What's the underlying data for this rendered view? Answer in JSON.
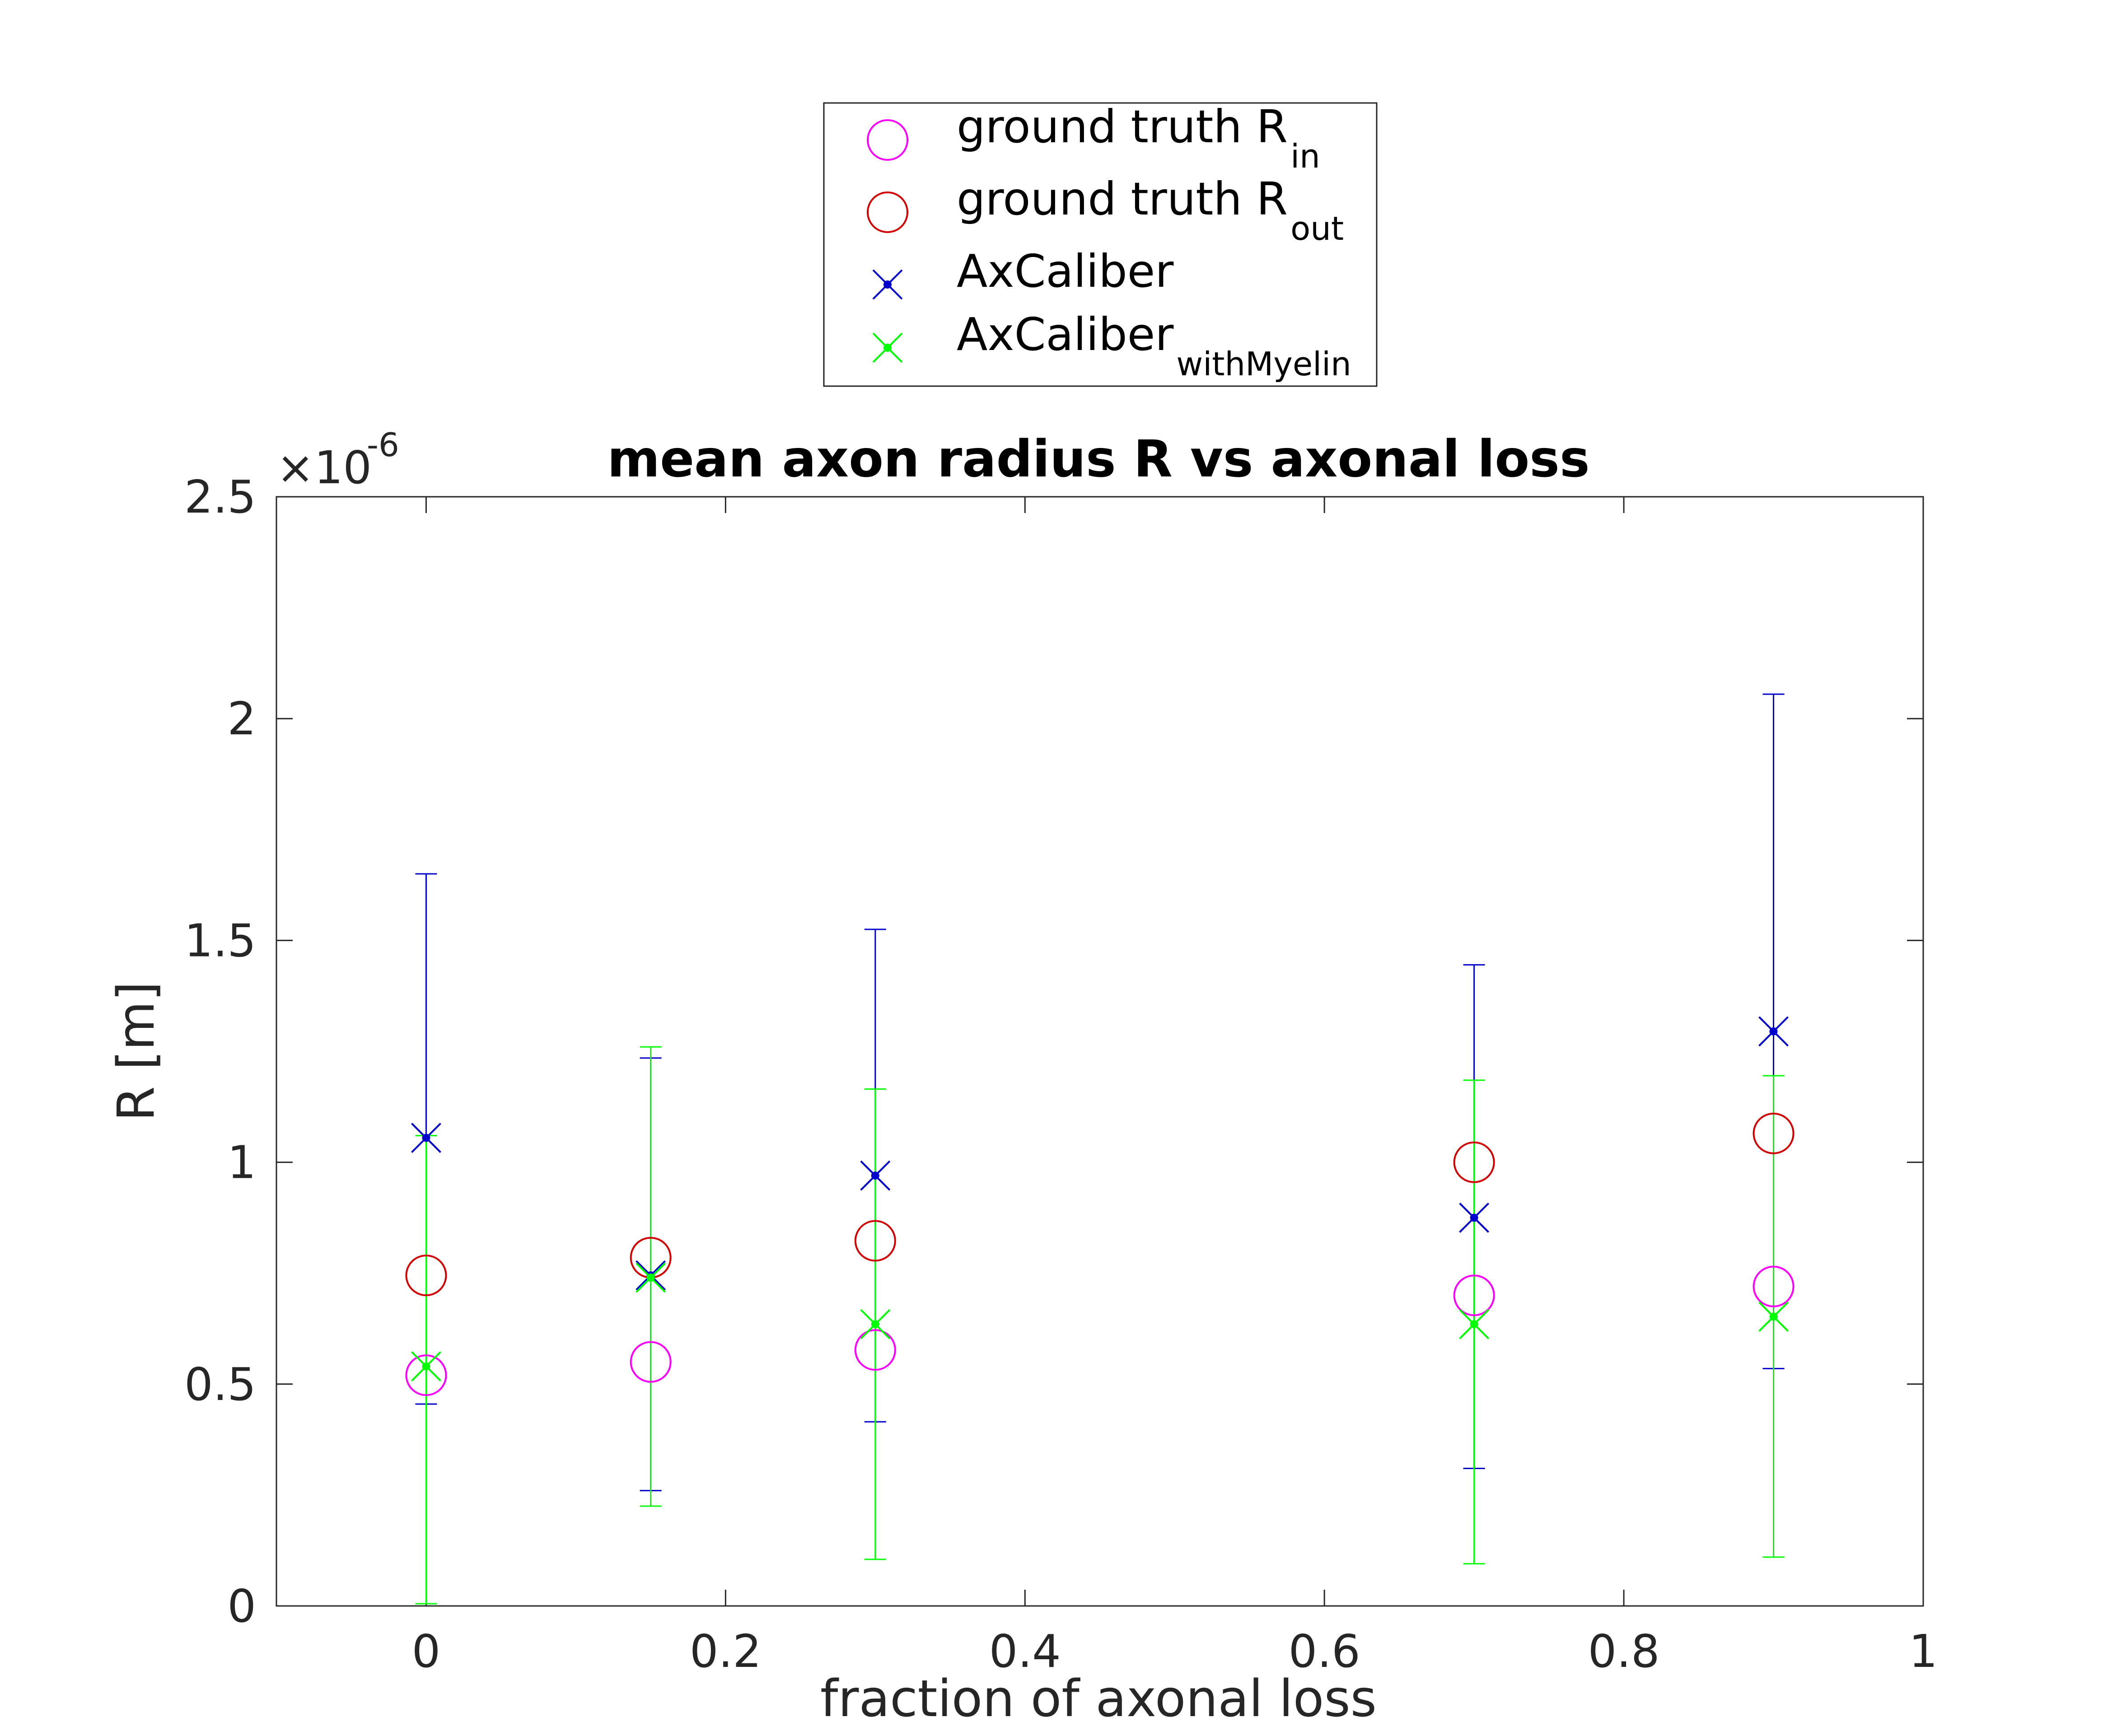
{
  "chart_data": {
    "type": "scatter",
    "title": "mean axon radius R vs axonal loss",
    "xlabel": "fraction of axonal loss",
    "ylabel": "R [m]",
    "xlim": [
      -0.1,
      1
    ],
    "ylim": [
      0,
      2.5
    ],
    "y_exponent_label": "×10",
    "y_exponent_power": "-6",
    "x_ticks": [
      0,
      0.2,
      0.4,
      0.6,
      0.8,
      1
    ],
    "x_tick_labels": [
      "0",
      "0.2",
      "0.4",
      "0.6",
      "0.8",
      "1"
    ],
    "y_ticks": [
      0,
      0.5,
      1,
      1.5,
      2,
      2.5
    ],
    "y_tick_labels": [
      "0",
      "0.5",
      "1",
      "1.5",
      "2",
      "2.5"
    ],
    "grid": false,
    "legend_position": "top-center, outside the plot area",
    "x": [
      0,
      0.15,
      0.3,
      0.7,
      0.9
    ],
    "series": [
      {
        "name": "ground truth R",
        "name_sub": "in",
        "marker": "circle",
        "color": "#ff00ff",
        "values": [
          0.52,
          0.55,
          0.577,
          0.7,
          0.72
        ]
      },
      {
        "name": "ground truth R",
        "name_sub": "out",
        "marker": "circle",
        "color": "#d40000",
        "values": [
          0.745,
          0.785,
          0.823,
          1.0,
          1.065
        ]
      },
      {
        "name": "AxCaliber",
        "name_sub": "",
        "marker": "x",
        "color": "#0000cc",
        "values": [
          1.055,
          0.745,
          0.97,
          0.875,
          1.295
        ],
        "err_low": [
          0.455,
          0.26,
          0.415,
          0.31,
          0.535
        ],
        "err_high": [
          1.65,
          1.235,
          1.525,
          1.445,
          2.055
        ]
      },
      {
        "name": "AxCaliber",
        "name_sub": "withMyelin",
        "marker": "x",
        "color": "#00ff00",
        "values": [
          0.54,
          0.74,
          0.635,
          0.635,
          0.652
        ],
        "err_low": [
          0.005,
          0.225,
          0.105,
          0.095,
          0.11
        ],
        "err_high": [
          1.06,
          1.26,
          1.165,
          1.185,
          1.195
        ]
      }
    ]
  }
}
